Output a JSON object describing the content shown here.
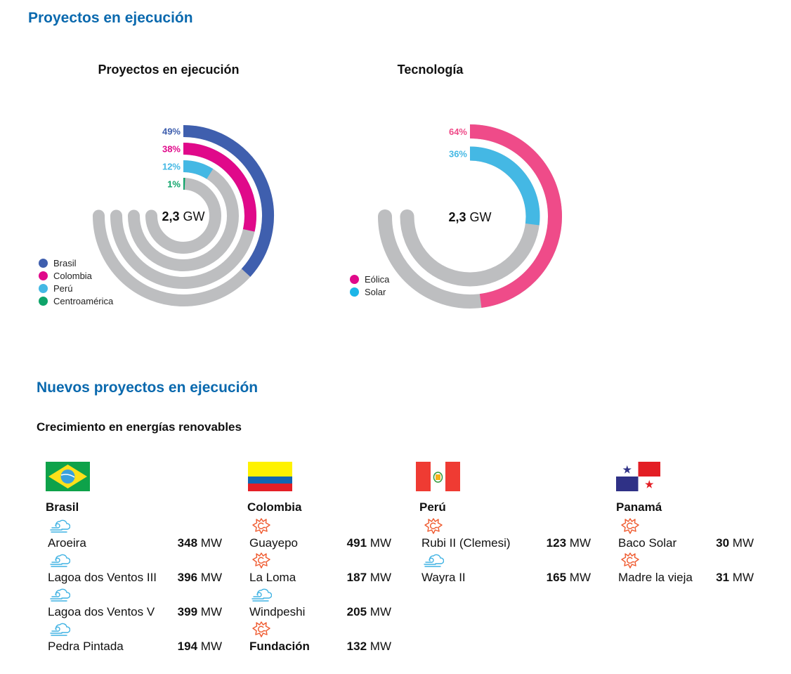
{
  "page": {
    "title": "Proyectos en ejecución",
    "section2_title": "Nuevos proyectos en ejecución",
    "section2_subtitle": "Crecimiento en energías renovables"
  },
  "chart_data": [
    {
      "type": "radial-bar",
      "title": "Proyectos en ejecución",
      "center_value": "2,3",
      "center_unit": "GW",
      "max_sweep_degrees": 270,
      "track_color": "#bdbec0",
      "series": [
        {
          "name": "Brasil",
          "value": 49,
          "label": "49%",
          "color": "#3f5fae"
        },
        {
          "name": "Colombia",
          "value": 38,
          "label": "38%",
          "color": "#e0098a"
        },
        {
          "name": "Perú",
          "value": 12,
          "label": "12%",
          "color": "#44b8e4"
        },
        {
          "name": "Centroamérica",
          "value": 1,
          "label": "1%",
          "color": "#0fa46a"
        }
      ],
      "legend": [
        "Brasil",
        "Colombia",
        "Perú",
        "Centroamérica"
      ],
      "legend_position": "bottom-left"
    },
    {
      "type": "radial-bar",
      "title": "Tecnología",
      "center_value": "2,3",
      "center_unit": "GW",
      "max_sweep_degrees": 270,
      "track_color": "#bdbec0",
      "series": [
        {
          "name": "Eólica",
          "value": 64,
          "label": "64%",
          "color": "#ef4b89",
          "legend_color": "#e0098a"
        },
        {
          "name": "Solar",
          "value": 36,
          "label": "36%",
          "color": "#44b8e4",
          "legend_color": "#1cb6e8"
        }
      ],
      "legend": [
        "Eólica",
        "Solar"
      ],
      "legend_position": "bottom-left"
    }
  ],
  "icons": {
    "wind": {
      "name": "wind-icon",
      "color": "#3fb2e3"
    },
    "solar": {
      "name": "solar-icon",
      "color": "#ef5a2f"
    }
  },
  "countries": [
    {
      "name": "Brasil",
      "flag": "brazil-flag",
      "projects": [
        {
          "name": "Aroeira",
          "value": "348",
          "unit": "MW",
          "tech": "wind"
        },
        {
          "name": "Lagoa dos Ventos III",
          "value": "396",
          "unit": "MW",
          "tech": "wind"
        },
        {
          "name": "Lagoa dos Ventos V",
          "value": "399",
          "unit": "MW",
          "tech": "wind"
        },
        {
          "name": "Pedra Pintada",
          "value": "194",
          "unit": "MW",
          "tech": "wind"
        }
      ]
    },
    {
      "name": "Colombia",
      "flag": "colombia-flag",
      "projects": [
        {
          "name": "Guayepo",
          "value": "491",
          "unit": "MW",
          "tech": "solar"
        },
        {
          "name": "La Loma",
          "value": "187",
          "unit": "MW",
          "tech": "solar"
        },
        {
          "name": "Windpeshi",
          "value": "205",
          "unit": "MW",
          "tech": "wind"
        },
        {
          "name": "Fundación",
          "value": "132",
          "unit": "MW",
          "tech": "solar",
          "bold": true
        }
      ]
    },
    {
      "name": "Perú",
      "flag": "peru-flag",
      "projects": [
        {
          "name": "Rubi II (Clemesi)",
          "value": "123",
          "unit": "MW",
          "tech": "solar"
        },
        {
          "name": "Wayra II",
          "value": "165",
          "unit": "MW",
          "tech": "wind"
        }
      ]
    },
    {
      "name": "Panamá",
      "flag": "panama-flag",
      "projects": [
        {
          "name": "Baco Solar",
          "value": "30",
          "unit": "MW",
          "tech": "solar"
        },
        {
          "name": "Madre la vieja",
          "value": "31",
          "unit": "MW",
          "tech": "solar"
        }
      ]
    }
  ]
}
